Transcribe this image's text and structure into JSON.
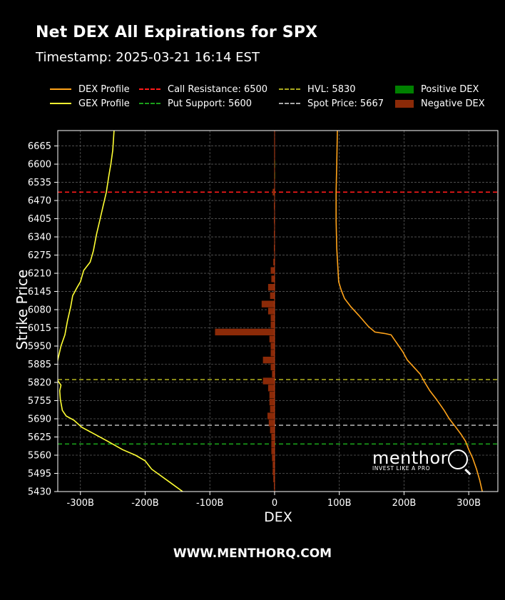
{
  "header": {
    "title": "Net DEX All Expirations for SPX",
    "timestamp": "Timestamp: 2025-03-21 16:14 EST"
  },
  "legend": [
    {
      "label": "DEX Profile",
      "color": "#ffa31a",
      "kind": "line"
    },
    {
      "label": "GEX Profile",
      "color": "#ffff33",
      "kind": "line"
    },
    {
      "label": "Call Resistance: 6500",
      "color": "#ff1a1a",
      "kind": "dash"
    },
    {
      "label": "Put Support: 5600",
      "color": "#1a9e1a",
      "kind": "dash"
    },
    {
      "label": "HVL: 5830",
      "color": "#a8a81e",
      "kind": "dash"
    },
    {
      "label": "Spot Price: 5667",
      "color": "#aaaaaa",
      "kind": "dash"
    },
    {
      "label": "Positive DEX",
      "color": "#008000",
      "kind": "box"
    },
    {
      "label": "Negative DEX",
      "color": "#8b2a08",
      "kind": "box"
    }
  ],
  "footer": {
    "text": "WWW.MENTHORQ.COM"
  },
  "logo": {
    "word": "menthor",
    "tagline": "INVEST LIKE A PRO"
  },
  "chart_data": {
    "type": "bar",
    "orientation": "horizontal",
    "xlabel": "DEX",
    "ylabel": "Strike Price",
    "xlim": [
      -335,
      345
    ],
    "ylim": [
      5430,
      6720
    ],
    "x_ticks": [
      -300,
      -200,
      -100,
      0,
      100,
      200,
      300
    ],
    "x_tick_labels": [
      "-300B",
      "-200B",
      "-100B",
      "0",
      "100B",
      "200B",
      "300B"
    ],
    "y_ticks": [
      5430,
      5495,
      5560,
      5625,
      5690,
      5755,
      5820,
      5885,
      5950,
      6015,
      6080,
      6145,
      6210,
      6275,
      6340,
      6405,
      6470,
      6535,
      6600,
      6665
    ],
    "grid": true,
    "levels": [
      {
        "name": "Call Resistance",
        "value": 6500,
        "color": "#ff1a1a"
      },
      {
        "name": "Put Support",
        "value": 5600,
        "color": "#1a9e1a"
      },
      {
        "name": "HVL",
        "value": 5830,
        "color": "#a8a81e"
      },
      {
        "name": "Spot Price",
        "value": 5667,
        "color": "#aaaaaa"
      }
    ],
    "bars": [
      {
        "strike": 6680,
        "value": -0.5
      },
      {
        "strike": 6640,
        "value": -0.5
      },
      {
        "strike": 6600,
        "value": 0.5
      },
      {
        "strike": 6560,
        "value": 0.5
      },
      {
        "strike": 6500,
        "value": -3
      },
      {
        "strike": 6450,
        "value": -1
      },
      {
        "strike": 6400,
        "value": -1
      },
      {
        "strike": 6350,
        "value": -1
      },
      {
        "strike": 6300,
        "value": -1
      },
      {
        "strike": 6250,
        "value": -2
      },
      {
        "strike": 6220,
        "value": -6
      },
      {
        "strike": 6190,
        "value": -5
      },
      {
        "strike": 6160,
        "value": -10
      },
      {
        "strike": 6130,
        "value": -7
      },
      {
        "strike": 6100,
        "value": -20
      },
      {
        "strike": 6075,
        "value": -10
      },
      {
        "strike": 6050,
        "value": -6
      },
      {
        "strike": 6025,
        "value": -6
      },
      {
        "strike": 6000,
        "value": -92
      },
      {
        "strike": 5975,
        "value": -8
      },
      {
        "strike": 5950,
        "value": -6
      },
      {
        "strike": 5925,
        "value": -6
      },
      {
        "strike": 5900,
        "value": -18
      },
      {
        "strike": 5875,
        "value": -6
      },
      {
        "strike": 5850,
        "value": -4
      },
      {
        "strike": 5825,
        "value": -18
      },
      {
        "strike": 5800,
        "value": -10
      },
      {
        "strike": 5775,
        "value": -8
      },
      {
        "strike": 5750,
        "value": -8
      },
      {
        "strike": 5725,
        "value": -7
      },
      {
        "strike": 5700,
        "value": -11
      },
      {
        "strike": 5675,
        "value": -9
      },
      {
        "strike": 5650,
        "value": -7
      },
      {
        "strike": 5625,
        "value": -5
      },
      {
        "strike": 5600,
        "value": -5
      },
      {
        "strike": 5575,
        "value": -5
      },
      {
        "strike": 5550,
        "value": -4
      },
      {
        "strike": 5525,
        "value": -3
      },
      {
        "strike": 5500,
        "value": -3
      },
      {
        "strike": 5475,
        "value": -2
      },
      {
        "strike": 5450,
        "value": -1
      }
    ],
    "series": [
      {
        "name": "DEX Profile",
        "color": "#ffa31a",
        "points": [
          [
            321,
            5430
          ],
          [
            317,
            5470
          ],
          [
            312,
            5510
          ],
          [
            306,
            5550
          ],
          [
            300,
            5580
          ],
          [
            295,
            5610
          ],
          [
            288,
            5635
          ],
          [
            280,
            5660
          ],
          [
            270,
            5690
          ],
          [
            262,
            5720
          ],
          [
            250,
            5760
          ],
          [
            240,
            5790
          ],
          [
            232,
            5820
          ],
          [
            225,
            5850
          ],
          [
            215,
            5875
          ],
          [
            205,
            5900
          ],
          [
            198,
            5930
          ],
          [
            192,
            5950
          ],
          [
            186,
            5970
          ],
          [
            180,
            5990
          ],
          [
            170,
            5995
          ],
          [
            155,
            6000
          ],
          [
            145,
            6020
          ],
          [
            130,
            6060
          ],
          [
            118,
            6090
          ],
          [
            108,
            6120
          ],
          [
            103,
            6150
          ],
          [
            99,
            6180
          ],
          [
            98,
            6220
          ],
          [
            96,
            6300
          ],
          [
            95,
            6400
          ],
          [
            95,
            6500
          ],
          [
            96,
            6600
          ],
          [
            97,
            6720
          ]
        ]
      },
      {
        "name": "GEX Profile",
        "color": "#ffff33",
        "points": [
          [
            -142,
            5430
          ],
          [
            -160,
            5460
          ],
          [
            -175,
            5485
          ],
          [
            -190,
            5510
          ],
          [
            -200,
            5540
          ],
          [
            -215,
            5560
          ],
          [
            -235,
            5580
          ],
          [
            -258,
            5610
          ],
          [
            -278,
            5635
          ],
          [
            -298,
            5660
          ],
          [
            -310,
            5685
          ],
          [
            -322,
            5700
          ],
          [
            -328,
            5720
          ],
          [
            -331,
            5760
          ],
          [
            -332,
            5790
          ],
          [
            -330,
            5810
          ],
          [
            -336,
            5830
          ],
          [
            -338,
            5850
          ],
          [
            -335,
            5900
          ],
          [
            -330,
            5950
          ],
          [
            -324,
            5990
          ],
          [
            -320,
            6040
          ],
          [
            -315,
            6090
          ],
          [
            -312,
            6130
          ],
          [
            -305,
            6160
          ],
          [
            -300,
            6180
          ],
          [
            -295,
            6220
          ],
          [
            -285,
            6250
          ],
          [
            -280,
            6290
          ],
          [
            -275,
            6350
          ],
          [
            -270,
            6400
          ],
          [
            -265,
            6450
          ],
          [
            -260,
            6500
          ],
          [
            -256,
            6560
          ],
          [
            -253,
            6600
          ],
          [
            -250,
            6650
          ],
          [
            -248,
            6720
          ]
        ]
      }
    ]
  }
}
